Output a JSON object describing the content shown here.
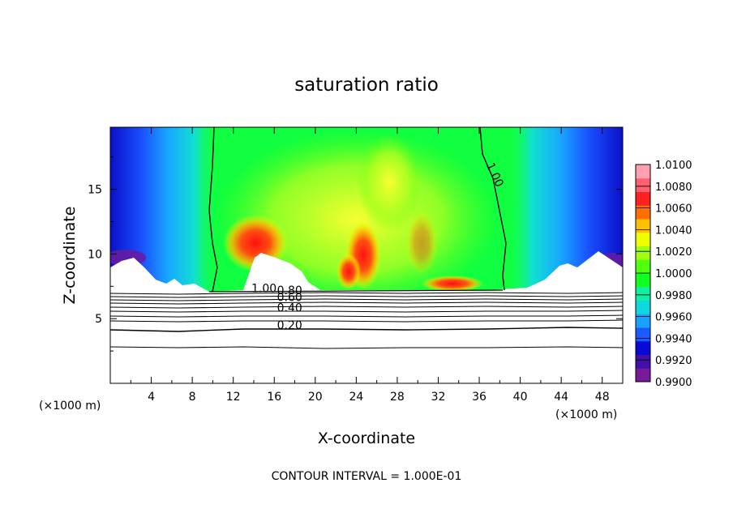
{
  "chart_data": {
    "type": "heatmap",
    "title": "saturation ratio",
    "xlabel": "X-coordinate",
    "ylabel": "Z-coordinate",
    "x_unit": "(×1000 m)",
    "x_unit_right": "(×1000 m)",
    "xlim": [
      0,
      50
    ],
    "ylim": [
      0,
      19.8
    ],
    "x_ticks": [
      4,
      8,
      12,
      16,
      20,
      24,
      28,
      32,
      36,
      40,
      44,
      48
    ],
    "y_ticks": [
      5,
      10,
      15
    ],
    "colorbar": {
      "min": 0.99,
      "max": 1.01,
      "labels": [
        "1.0100",
        "1.0080",
        "1.0060",
        "1.0040",
        "1.0020",
        "1.0000",
        "0.9980",
        "0.9960",
        "0.9940",
        "0.9920",
        "0.9900"
      ],
      "colors": [
        "#7a1a9a",
        "#4010a8",
        "#0a0ad8",
        "#1a5aff",
        "#1aa0ff",
        "#10d8e0",
        "#10f0a0",
        "#10ff20",
        "#50ff10",
        "#a0ff10",
        "#f0ff00",
        "#ffc000",
        "#ff7000",
        "#ff2020",
        "#ff6070",
        "#ffa0b0"
      ]
    },
    "contour_labels": [
      {
        "text": "1.00",
        "x": 37.2,
        "y": 16.0
      },
      {
        "text": "1.00",
        "x": 15.0,
        "y": 7.05
      },
      {
        "text": "0.80",
        "x": 17.5,
        "y": 6.9
      },
      {
        "text": "0.60",
        "x": 17.5,
        "y": 6.35
      },
      {
        "text": "0.40",
        "x": 17.5,
        "y": 5.55
      },
      {
        "text": "0.20",
        "x": 17.5,
        "y": 4.2
      }
    ],
    "annotation": "CONTOUR INTERVAL = 1.000E-01"
  }
}
